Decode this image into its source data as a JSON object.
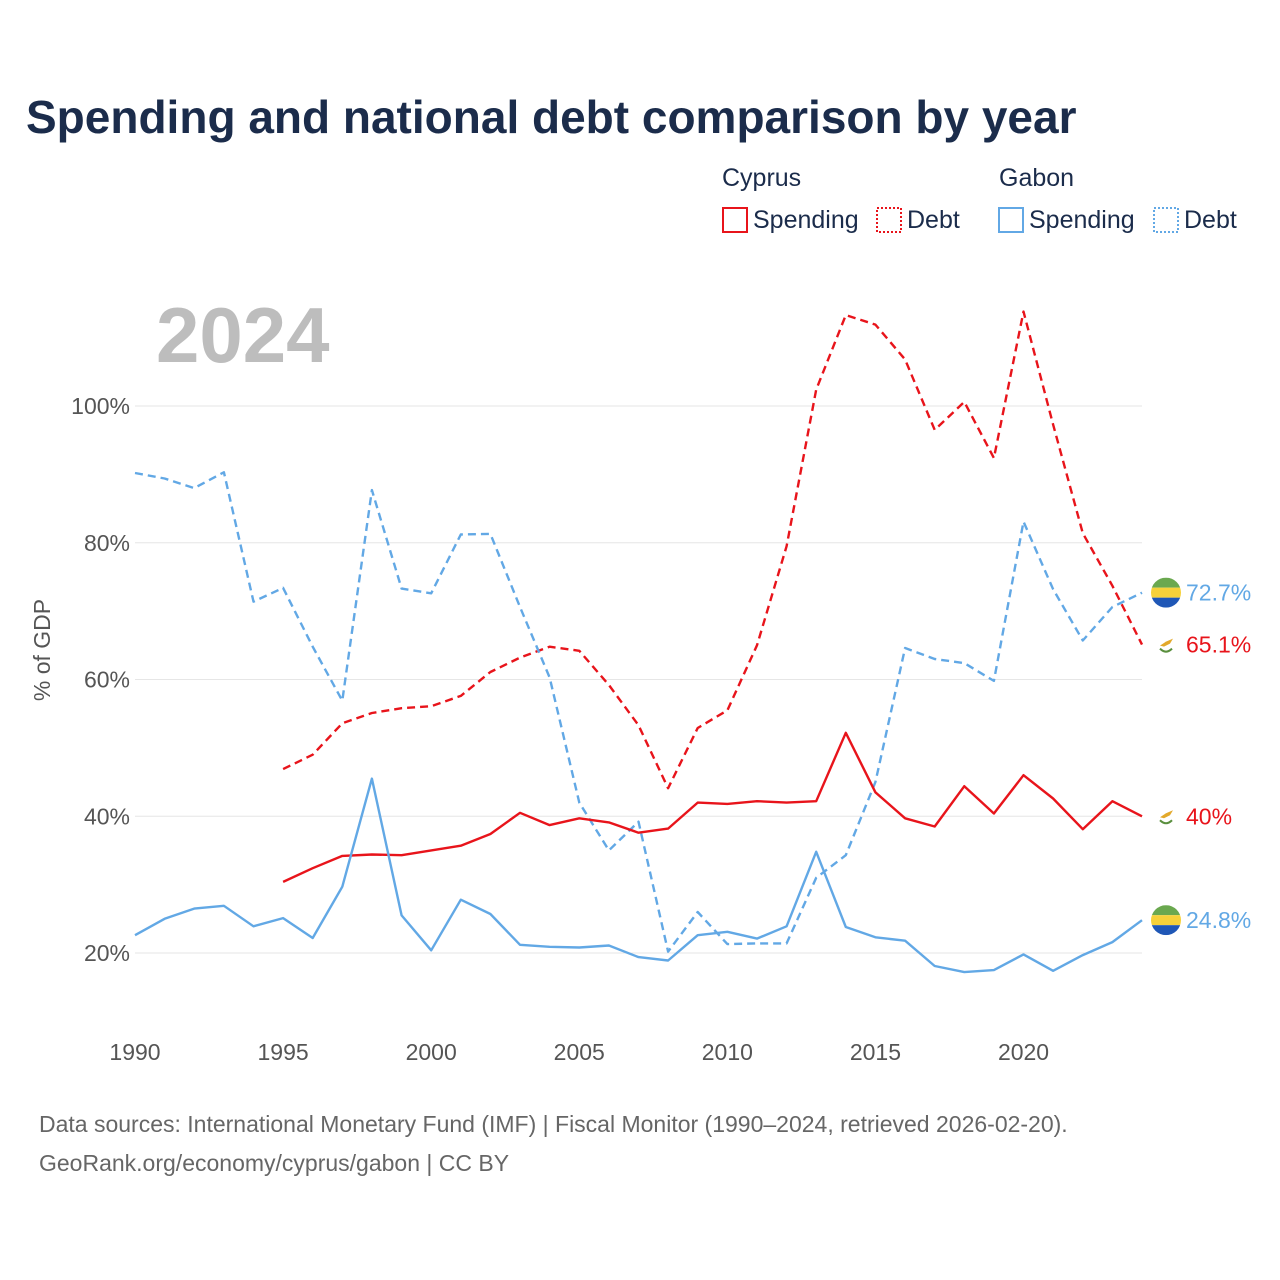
{
  "chart_data": {
    "type": "line",
    "title": "Spending and national debt comparison by year",
    "year_label": "2024",
    "ylabel": "% of GDP",
    "xlabel": "",
    "xlim": [
      1990,
      2024
    ],
    "ylim": [
      10,
      115
    ],
    "x_ticks": [
      1990,
      1995,
      2000,
      2005,
      2010,
      2015,
      2020
    ],
    "x_tick_labels": [
      "1990",
      "1995",
      "2000",
      "2005",
      "2010",
      "2015",
      "2020"
    ],
    "y_ticks": [
      20,
      40,
      60,
      80,
      100
    ],
    "y_tick_labels": [
      "20%",
      "40%",
      "60%",
      "80%",
      "100%"
    ],
    "legend": {
      "placement": "top-right",
      "groups": [
        {
          "country": "Cyprus",
          "items": [
            "Spending",
            "Debt"
          ],
          "color": "#e8141b"
        },
        {
          "country": "Gabon",
          "items": [
            "Spending",
            "Debt"
          ],
          "color": "#62a8e5"
        }
      ]
    },
    "series": [
      {
        "name": "Cyprus Debt",
        "country": "Cyprus",
        "kind": "Debt",
        "color": "#e8141b",
        "style": "dashed",
        "x": [
          1995,
          1996,
          1997,
          1998,
          1999,
          2000,
          2001,
          2002,
          2003,
          2004,
          2005,
          2006,
          2007,
          2008,
          2009,
          2010,
          2011,
          2012,
          2013,
          2014,
          2015,
          2016,
          2017,
          2018,
          2019,
          2020,
          2021,
          2022,
          2023,
          2024
        ],
        "values": [
          46.9,
          49.0,
          53.6,
          55.1,
          55.8,
          56.1,
          57.6,
          61.1,
          63.2,
          64.8,
          64.2,
          59.2,
          53.3,
          44.1,
          52.9,
          55.5,
          65.0,
          79.5,
          102.4,
          113.3,
          111.9,
          106.8,
          96.5,
          100.6,
          92.4,
          113.8,
          97.3,
          81.4,
          73.7,
          65.1
        ],
        "end_label": "65.1%"
      },
      {
        "name": "Gabon Debt",
        "country": "Gabon",
        "kind": "Debt",
        "color": "#62a8e5",
        "style": "dashed",
        "x": [
          1990,
          1991,
          1992,
          1993,
          1994,
          1995,
          1996,
          1997,
          1998,
          1999,
          2000,
          2001,
          2002,
          2003,
          2004,
          2005,
          2006,
          2007,
          2008,
          2009,
          2010,
          2011,
          2012,
          2013,
          2014,
          2015,
          2016,
          2017,
          2018,
          2019,
          2020,
          2021,
          2022,
          2023,
          2024
        ],
        "values": [
          90.2,
          89.4,
          88.0,
          90.3,
          71.4,
          73.4,
          64.8,
          56.9,
          87.7,
          73.3,
          72.6,
          81.2,
          81.3,
          70.6,
          60.3,
          42.0,
          35.0,
          39.2,
          20.2,
          26.0,
          21.3,
          21.4,
          21.4,
          31.0,
          34.3,
          45.0,
          64.6,
          63.0,
          62.4,
          59.8,
          83.1,
          73.2,
          65.7,
          70.6,
          72.7
        ],
        "end_label": "72.7%"
      },
      {
        "name": "Cyprus Spending",
        "country": "Cyprus",
        "kind": "Spending",
        "color": "#e8141b",
        "style": "solid",
        "x": [
          1995,
          1996,
          1997,
          1998,
          1999,
          2000,
          2001,
          2002,
          2003,
          2004,
          2005,
          2006,
          2007,
          2008,
          2009,
          2010,
          2011,
          2012,
          2013,
          2014,
          2015,
          2016,
          2017,
          2018,
          2019,
          2020,
          2021,
          2022,
          2023,
          2024
        ],
        "values": [
          30.4,
          32.4,
          34.2,
          34.4,
          34.3,
          35.0,
          35.7,
          37.4,
          40.5,
          38.7,
          39.7,
          39.1,
          37.6,
          38.2,
          42.0,
          41.8,
          42.2,
          42.0,
          42.2,
          52.2,
          43.5,
          39.7,
          38.5,
          44.4,
          40.4,
          46.0,
          42.6,
          38.1,
          42.2,
          40.0
        ],
        "end_label": "40%"
      },
      {
        "name": "Gabon Spending",
        "country": "Gabon",
        "kind": "Spending",
        "color": "#62a8e5",
        "style": "solid",
        "x": [
          1990,
          1991,
          1992,
          1993,
          1994,
          1995,
          1996,
          1997,
          1998,
          1999,
          2000,
          2001,
          2002,
          2003,
          2004,
          2005,
          2006,
          2007,
          2008,
          2009,
          2010,
          2011,
          2012,
          2013,
          2014,
          2015,
          2016,
          2017,
          2018,
          2019,
          2020,
          2021,
          2022,
          2023,
          2024
        ],
        "values": [
          22.6,
          25.0,
          26.5,
          26.9,
          23.9,
          25.1,
          22.2,
          29.7,
          45.5,
          25.5,
          20.4,
          27.8,
          25.7,
          21.2,
          20.9,
          20.8,
          21.1,
          19.4,
          18.9,
          22.6,
          23.1,
          22.1,
          23.9,
          34.8,
          23.8,
          22.3,
          21.8,
          18.1,
          17.2,
          17.5,
          19.8,
          17.4,
          19.7,
          21.6,
          24.8
        ],
        "end_label": "24.8%"
      }
    ]
  },
  "source": {
    "line1": "Data sources: International Monetary Fund (IMF) | Fiscal Monitor (1990–2024, retrieved 2026-02-20).",
    "line2": "GeoRank.org/economy/cyprus/gabon | CC BY"
  }
}
